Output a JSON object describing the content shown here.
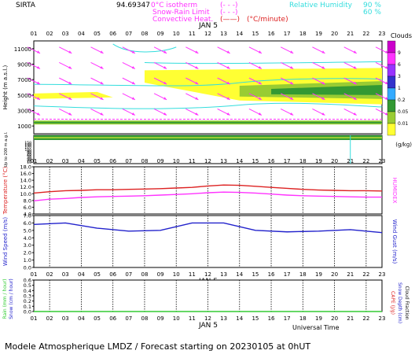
{
  "header": {
    "site": "SIRTA",
    "coord": "94.69347",
    "legend_isotherm": "0°C isotherm",
    "legend_snowrain": "Snow-Rain Limit",
    "legend_convective": "Convective Heat.",
    "legend_convective_unit": "(°C/minute)",
    "legend_rh": "Relative Humidity",
    "rh_90": "90 %",
    "rh_60": "60 %"
  },
  "hours": [
    "01",
    "02",
    "03",
    "04",
    "05",
    "06",
    "07",
    "08",
    "09",
    "10",
    "11",
    "12",
    "13",
    "14",
    "15",
    "16",
    "17",
    "18",
    "19",
    "20",
    "21",
    "22",
    "23"
  ],
  "date_label": "JAN  5",
  "clouds": {
    "title": "Clouds",
    "unit": "(g/kg)",
    "scale": [
      "9",
      "6",
      "3",
      "1",
      "0.2",
      "0.05",
      "0.01"
    ],
    "colors": [
      "#cc00cc",
      "#ff33ff",
      "#9933ff",
      "#3333cc",
      "#33aaff",
      "#339933",
      "#99cc33",
      "#ffff33"
    ]
  },
  "colors": {
    "temperature": "#dd2222",
    "humidex": "#ff33ff",
    "wind": "#2222cc",
    "isotherm": "#ff33ff",
    "rh": "#33dddd",
    "rain": "#33cc33"
  },
  "footer": {
    "model": "Modele Atmospherique LMDZ / Forecast starting on 20230105 at 0hUT",
    "time_label": "Universal Time"
  },
  "chart_data": [
    {
      "type": "heatmap",
      "title": "",
      "ylabel": "Height (m a.s.l.)",
      "yticks": [
        1000,
        3000,
        5000,
        7000,
        9000,
        11000
      ],
      "ylim": [
        0,
        12000
      ],
      "low_ylabel": "Up to 200 m a.g.l.",
      "low_yticks": [
        10,
        20,
        30,
        40,
        50,
        60,
        70,
        80,
        90,
        100,
        110,
        120,
        130,
        140,
        150,
        160,
        170,
        180,
        190,
        200
      ],
      "low_ytick_labels": [
        "10",
        "20",
        "30",
        "40",
        "50",
        "60",
        "70",
        "80",
        "90",
        "100",
        "",
        "120",
        "130",
        "140",
        "150",
        "",
        "",
        "",
        "",
        ""
      ],
      "x": [
        "01",
        "23"
      ]
    },
    {
      "type": "line",
      "ylabel": "Temperature (°C)",
      "right_label": "HUMIDEX",
      "yticks_labels": [
        "4.0",
        "6.0",
        "8.0",
        "10.0",
        "12.0",
        "14.0",
        "16.0",
        "18.0"
      ],
      "ylim": [
        4,
        18
      ],
      "x": [
        "01",
        "02",
        "03",
        "04",
        "05",
        "06",
        "07",
        "08",
        "09",
        "10",
        "11",
        "12",
        "13",
        "14",
        "15",
        "16",
        "17",
        "18",
        "19",
        "20",
        "21",
        "22",
        "23"
      ],
      "series": [
        {
          "name": "Temperature",
          "values": [
            10.2,
            10.6,
            10.9,
            11.0,
            11.2,
            11.2,
            11.3,
            11.4,
            11.5,
            11.7,
            11.9,
            12.3,
            12.6,
            12.5,
            12.2,
            11.9,
            11.6,
            11.3,
            11.1,
            11.0,
            10.9,
            10.9,
            10.8
          ]
        },
        {
          "name": "HUMIDEX",
          "values": [
            7.9,
            8.4,
            8.6,
            8.9,
            9.1,
            9.2,
            9.3,
            9.4,
            9.6,
            9.8,
            10.0,
            10.3,
            10.5,
            10.4,
            10.2,
            9.9,
            9.6,
            9.4,
            9.3,
            9.2,
            9.1,
            9.0,
            9.0
          ]
        }
      ]
    },
    {
      "type": "line",
      "ylabel": "Wind Speed (m/s)",
      "right_label": "Wind Gust (m/s)",
      "yticks_labels": [
        "0.0",
        "1.0",
        "2.0",
        "3.0",
        "4.0",
        "5.0",
        "6.0",
        "7.0"
      ],
      "ylim": [
        0,
        7
      ],
      "x": [
        "01",
        "03",
        "05",
        "07",
        "09",
        "11",
        "13",
        "15",
        "17",
        "19",
        "21",
        "23"
      ],
      "series": [
        {
          "name": "Wind Speed",
          "values": [
            5.8,
            6.0,
            5.3,
            4.9,
            5.0,
            6.0,
            6.0,
            5.0,
            4.8,
            4.9,
            5.1,
            4.7
          ]
        }
      ]
    },
    {
      "type": "line",
      "ylabel": "Rain (mm / hour)",
      "ylabel2": "Snow (cm / hour)",
      "right_label": "CAPE (J/g)",
      "right_label2": "Snow Depth (cm)",
      "right_label3": "Cloud Fraction",
      "yticks_labels": [
        "0.0",
        "0.1",
        "0.2",
        "0.3",
        "0.4",
        "0.5",
        "0.6"
      ],
      "ylim": [
        0,
        0.6
      ],
      "x": [
        "01",
        "23"
      ],
      "series": [
        {
          "name": "Rain",
          "values": [
            0.0,
            0.0
          ]
        }
      ]
    }
  ]
}
